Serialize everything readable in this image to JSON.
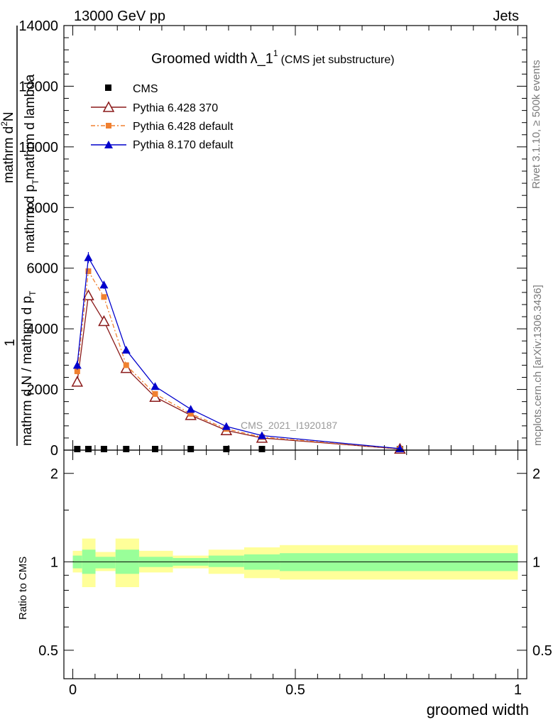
{
  "header": {
    "left": "13000 GeV pp",
    "right": "Jets"
  },
  "title": {
    "main": "Groomed width",
    "lambda": "λ_1",
    "sup": "1",
    "sub": "(CMS jet substructure)"
  },
  "side_labels": {
    "rivet": "Rivet 3.1.10, ≥ 500k events",
    "site": "mcplots.cern.ch [arXiv:1306.3436]"
  },
  "watermark": "CMS_2021_I1920187",
  "ylabel_main": {
    "one": "1",
    "top_line1": "mathrm d",
    "top_sup": "2",
    "top_N": "N",
    "top_line2": "mathrm d p",
    "top_T": "T",
    "top_line3": "mathrm d lambda",
    "bottom_line1": "mathrm d N / mathrm d p",
    "bottom_T": "T"
  },
  "ylabel_ratio": "Ratio to CMS",
  "xlabel": "groomed width",
  "chart_data": [
    {
      "type": "line",
      "panel": "main",
      "xlim": [
        -0.02,
        1.02
      ],
      "ylim": [
        0,
        14000
      ],
      "yscale": "linear",
      "yticks_major": [
        {
          "v": 0,
          "label": "0"
        },
        {
          "v": 2000,
          "label": "2000"
        },
        {
          "v": 4000,
          "label": "4000"
        },
        {
          "v": 6000,
          "label": "6000"
        },
        {
          "v": 8000,
          "label": "8000"
        },
        {
          "v": 10000,
          "label": "10000"
        },
        {
          "v": 12000,
          "label": "12000"
        },
        {
          "v": 14000,
          "label": "14000"
        }
      ],
      "legend_position": "top-left",
      "x": [
        0.01,
        0.035,
        0.07,
        0.12,
        0.185,
        0.265,
        0.345,
        0.425,
        0.735
      ],
      "series": [
        {
          "name": "CMS",
          "style": "data",
          "color": "#000000",
          "values": [
            20,
            20,
            20,
            20,
            20,
            20,
            20,
            20,
            20
          ]
        },
        {
          "name": "Pythia 6.428 370",
          "style": "open-triangle",
          "color": "#8b1a1a",
          "values": [
            2250,
            5100,
            4250,
            2700,
            1750,
            1150,
            650,
            400,
            40
          ],
          "errors": [
            120,
            110,
            90,
            60,
            40,
            30,
            20,
            15,
            5
          ]
        },
        {
          "name": "Pythia 6.428 default",
          "style": "square-dashdot",
          "color": "#f08030",
          "values": [
            2600,
            5900,
            5050,
            2800,
            1850,
            1200,
            700,
            430,
            45
          ],
          "errors": [
            100,
            100,
            80,
            60,
            40,
            30,
            20,
            15,
            5
          ]
        },
        {
          "name": "Pythia 8.170 default",
          "style": "filled-triangle",
          "color": "#0000cc",
          "values": [
            2800,
            6350,
            5450,
            3300,
            2100,
            1350,
            780,
            480,
            50
          ],
          "errors": [
            150,
            180,
            130,
            80,
            50,
            35,
            25,
            15,
            5
          ]
        }
      ]
    },
    {
      "type": "area",
      "panel": "ratio",
      "xlim": [
        -0.02,
        1.02
      ],
      "ylim": [
        0.4,
        2.4
      ],
      "yscale": "log",
      "yticks_major": [
        {
          "v": 0.5,
          "label": "0.5"
        },
        {
          "v": 1,
          "label": "1"
        },
        {
          "v": 2,
          "label": "2"
        }
      ],
      "xticks_major": [
        {
          "v": 0,
          "label": "0"
        },
        {
          "v": 0.5,
          "label": "0.5"
        },
        {
          "v": 1,
          "label": "1"
        }
      ],
      "bins": [
        {
          "x0": 0.0,
          "x1": 0.021,
          "stat_lo": 0.95,
          "stat_hi": 1.05,
          "tot_lo": 0.92,
          "tot_hi": 1.09
        },
        {
          "x0": 0.021,
          "x1": 0.051,
          "stat_lo": 0.91,
          "stat_hi": 1.1,
          "tot_lo": 0.82,
          "tot_hi": 1.2
        },
        {
          "x0": 0.051,
          "x1": 0.096,
          "stat_lo": 0.95,
          "stat_hi": 1.04,
          "tot_lo": 0.93,
          "tot_hi": 1.08
        },
        {
          "x0": 0.096,
          "x1": 0.149,
          "stat_lo": 0.91,
          "stat_hi": 1.1,
          "tot_lo": 0.82,
          "tot_hi": 1.2
        },
        {
          "x0": 0.149,
          "x1": 0.225,
          "stat_lo": 0.96,
          "stat_hi": 1.04,
          "tot_lo": 0.92,
          "tot_hi": 1.09
        },
        {
          "x0": 0.225,
          "x1": 0.305,
          "stat_lo": 0.97,
          "stat_hi": 1.03,
          "tot_lo": 0.95,
          "tot_hi": 1.05
        },
        {
          "x0": 0.305,
          "x1": 0.385,
          "stat_lo": 0.96,
          "stat_hi": 1.05,
          "tot_lo": 0.91,
          "tot_hi": 1.1
        },
        {
          "x0": 0.385,
          "x1": 0.465,
          "stat_lo": 0.94,
          "stat_hi": 1.06,
          "tot_lo": 0.88,
          "tot_hi": 1.12
        },
        {
          "x0": 0.465,
          "x1": 1.0,
          "stat_lo": 0.93,
          "stat_hi": 1.07,
          "tot_lo": 0.87,
          "tot_hi": 1.14
        }
      ],
      "stat_color": "#99ff99",
      "total_color": "#ffff99"
    }
  ]
}
